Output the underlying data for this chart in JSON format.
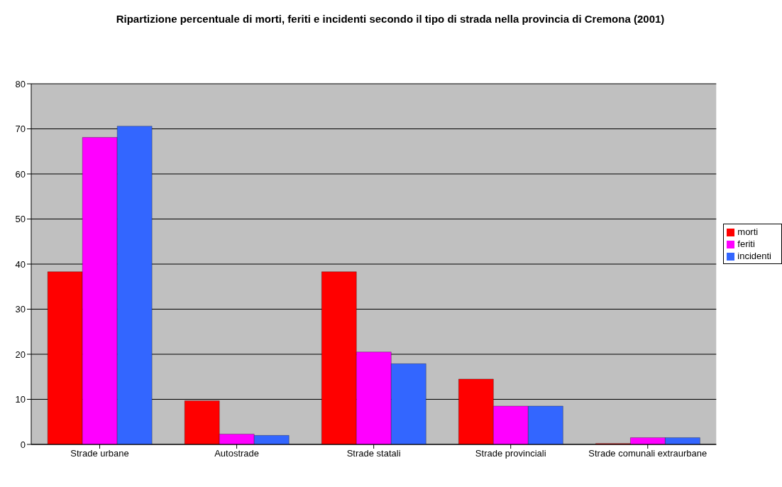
{
  "chart_data": {
    "type": "bar",
    "title": "Ripartizione percentuale di morti, feriti e incidenti secondo il tipo di strada nella provincia di Cremona (2001)",
    "categories": [
      "Strade urbane",
      "Autostrade",
      "Strade statali",
      "Strade provinciali",
      "Strade comunali extraurbane"
    ],
    "series": [
      {
        "name": "morti",
        "color": "#ff0000",
        "values": [
          38.3,
          9.7,
          38.3,
          14.5,
          0.2
        ]
      },
      {
        "name": "feriti",
        "color": "#ff00ff",
        "values": [
          68.1,
          2.3,
          20.5,
          8.5,
          1.5
        ]
      },
      {
        "name": "incidenti",
        "color": "#3366ff",
        "values": [
          70.6,
          2.0,
          17.9,
          8.5,
          1.5
        ]
      }
    ],
    "ylim": [
      0,
      80
    ],
    "yticks": [
      0,
      10,
      20,
      30,
      40,
      50,
      60,
      70,
      80
    ],
    "grid": "y",
    "legend": "right"
  }
}
